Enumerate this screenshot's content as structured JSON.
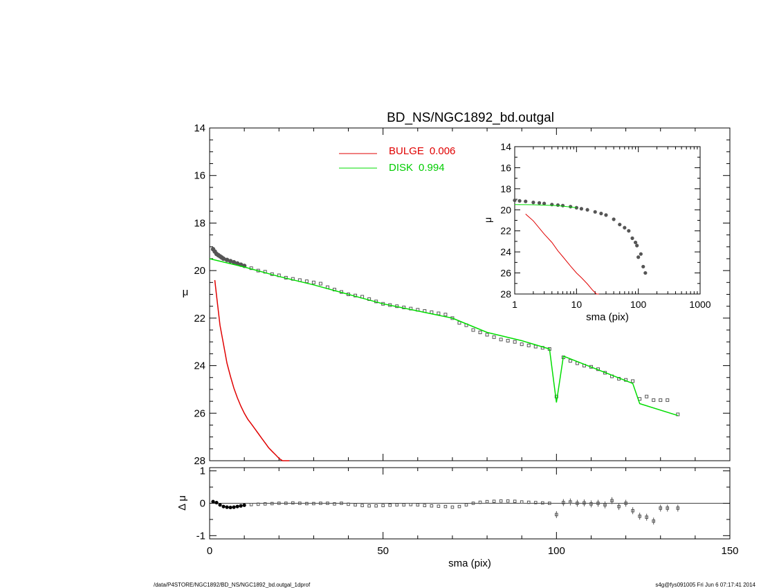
{
  "title": "BD_NS/NGC1892_bd.outgal",
  "footer_left": "/data/P4STORE/NGC1892/BD_NS/NGC1892_bd.outgal_1dprof",
  "footer_right": "s4g@fys091005  Fri Jun  6 07:17:41 2014",
  "colors": {
    "bulge": "#e00000",
    "disk": "#00dd00",
    "data": "#555555",
    "axis": "#000000"
  },
  "chart_data": [
    {
      "name": "main-profile",
      "type": "line",
      "xlabel": "",
      "ylabel": "μ",
      "xlim": [
        0,
        150
      ],
      "ylim": [
        28,
        14
      ],
      "y_ticks": [
        14,
        16,
        18,
        20,
        22,
        24,
        26,
        28
      ],
      "legend": [
        {
          "label": "BULGE",
          "value": "0.006"
        },
        {
          "label": "DISK",
          "value": "0.994"
        }
      ],
      "legend_position": "top-center",
      "observed": {
        "x": [
          1,
          1.5,
          2,
          2.5,
          3,
          3.5,
          4,
          5,
          6,
          7,
          8,
          9,
          10,
          12,
          14,
          16,
          18,
          20,
          22,
          24,
          26,
          28,
          30,
          32,
          34,
          36,
          38,
          40,
          42,
          44,
          46,
          48,
          50,
          52,
          54,
          56,
          58,
          60,
          62,
          64,
          66,
          68,
          70,
          72,
          74,
          76,
          78,
          80,
          82,
          84,
          86,
          88,
          90,
          92,
          94,
          96,
          98,
          100,
          102,
          104,
          106,
          108,
          110,
          112,
          114,
          116,
          118,
          120,
          122,
          124,
          126,
          128,
          130,
          132,
          135
        ],
        "y": [
          19.1,
          19.2,
          19.3,
          19.35,
          19.4,
          19.45,
          19.5,
          19.55,
          19.6,
          19.65,
          19.7,
          19.75,
          19.8,
          19.9,
          20.0,
          20.05,
          20.15,
          20.2,
          20.3,
          20.35,
          20.4,
          20.45,
          20.5,
          20.55,
          20.7,
          20.8,
          20.9,
          21.0,
          21.05,
          21.1,
          21.2,
          21.3,
          21.4,
          21.45,
          21.5,
          21.55,
          21.6,
          21.65,
          21.7,
          21.75,
          21.8,
          21.85,
          22.0,
          22.2,
          22.3,
          22.5,
          22.6,
          22.7,
          22.8,
          22.9,
          22.95,
          23.0,
          23.1,
          23.15,
          23.2,
          23.25,
          23.3,
          25.3,
          23.65,
          23.8,
          23.9,
          24.0,
          24.05,
          24.15,
          24.3,
          24.45,
          24.55,
          24.6,
          24.65,
          25.4,
          25.3,
          25.45,
          25.45,
          25.45,
          26.05
        ]
      },
      "series": [
        {
          "name": "BULGE",
          "x": [
            1.5,
            2,
            3,
            4,
            5,
            6,
            7,
            8,
            9,
            10,
            11,
            12,
            13,
            14,
            15,
            16,
            17,
            18,
            19,
            20,
            21,
            22,
            23
          ],
          "y": [
            20.4,
            21.05,
            22.3,
            23.1,
            23.9,
            24.45,
            24.95,
            25.35,
            25.7,
            26.0,
            26.25,
            26.45,
            26.65,
            26.85,
            27.05,
            27.25,
            27.45,
            27.6,
            27.75,
            27.9,
            28.0,
            28.05,
            28.1
          ]
        },
        {
          "name": "DISK",
          "x": [
            0,
            10,
            20,
            30,
            40,
            50,
            60,
            70,
            80,
            90,
            98,
            100,
            102,
            122,
            124,
            135
          ],
          "y": [
            19.5,
            19.85,
            20.25,
            20.6,
            21.0,
            21.4,
            21.7,
            22.0,
            22.6,
            22.95,
            23.3,
            25.55,
            23.6,
            24.75,
            25.6,
            26.1
          ]
        }
      ]
    },
    {
      "name": "inset-log-profile",
      "type": "line",
      "xlabel": "sma (pix)",
      "ylabel": "μ",
      "x_scale": "log",
      "xlim": [
        1,
        1000
      ],
      "ylim": [
        28,
        14
      ],
      "x_ticks": [
        "1",
        "10",
        "100",
        "1000"
      ],
      "y_ticks": [
        14,
        16,
        18,
        20,
        22,
        24,
        26,
        28
      ],
      "observed": {
        "x": [
          1,
          1.2,
          1.5,
          2,
          2.5,
          3,
          4,
          5,
          6,
          8,
          10,
          12,
          15,
          20,
          25,
          30,
          40,
          50,
          60,
          70,
          80,
          90,
          95,
          100,
          110,
          120,
          130
        ],
        "y": [
          19.1,
          19.15,
          19.2,
          19.3,
          19.35,
          19.4,
          19.5,
          19.55,
          19.6,
          19.7,
          19.8,
          19.9,
          20.0,
          20.2,
          20.35,
          20.5,
          20.9,
          21.4,
          21.7,
          22.0,
          22.7,
          23.1,
          23.4,
          24.5,
          24.2,
          25.4,
          26.0
        ]
      },
      "series": [
        {
          "name": "BULGE",
          "x": [
            1.5,
            2,
            3,
            4,
            5,
            6,
            8,
            10,
            12,
            15,
            18,
            21,
            23
          ],
          "y": [
            20.4,
            21.05,
            22.3,
            23.1,
            23.9,
            24.45,
            25.35,
            26.0,
            26.45,
            27.05,
            27.6,
            28.0,
            28.1
          ]
        },
        {
          "name": "DISK",
          "x": [
            1,
            2,
            5,
            10
          ],
          "y": [
            19.5,
            19.52,
            19.6,
            19.8
          ]
        }
      ]
    },
    {
      "name": "residual",
      "type": "scatter",
      "xlabel": "sma (pix)",
      "ylabel": "Δ μ",
      "xlim": [
        0,
        150
      ],
      "ylim": [
        -1.1,
        1.1
      ],
      "x_ticks": [
        0,
        50,
        100,
        150
      ],
      "y_ticks": [
        1,
        0,
        -1
      ],
      "x": [
        1,
        2,
        3,
        4,
        5,
        6,
        7,
        8,
        9,
        10,
        12,
        14,
        16,
        18,
        20,
        22,
        24,
        26,
        28,
        30,
        32,
        34,
        36,
        38,
        40,
        42,
        44,
        46,
        48,
        50,
        52,
        54,
        56,
        58,
        60,
        62,
        64,
        66,
        68,
        70,
        72,
        74,
        76,
        78,
        80,
        82,
        84,
        86,
        88,
        90,
        92,
        94,
        96,
        98,
        100,
        102,
        104,
        106,
        108,
        110,
        112,
        114,
        116,
        118,
        120,
        122,
        124,
        126,
        128,
        130,
        132,
        135
      ],
      "y": [
        0.05,
        0.02,
        -0.05,
        -0.1,
        -0.12,
        -0.13,
        -0.12,
        -0.1,
        -0.08,
        -0.06,
        -0.04,
        -0.03,
        -0.02,
        -0.01,
        0.0,
        0.0,
        0.01,
        0.0,
        -0.01,
        -0.01,
        0.0,
        0.0,
        -0.02,
        0.0,
        -0.03,
        -0.05,
        -0.07,
        -0.08,
        -0.08,
        -0.07,
        -0.06,
        -0.05,
        -0.05,
        -0.04,
        -0.05,
        -0.07,
        -0.08,
        -0.09,
        -0.1,
        -0.12,
        -0.1,
        -0.05,
        0.0,
        0.03,
        0.05,
        0.06,
        0.07,
        0.07,
        0.06,
        0.04,
        0.03,
        0.02,
        0.01,
        0.0,
        -0.35,
        0.02,
        0.04,
        0.0,
        0.01,
        -0.02,
        0.0,
        -0.05,
        0.08,
        -0.1,
        0.0,
        -0.23,
        -0.4,
        -0.43,
        -0.55,
        -0.15,
        -0.15,
        -0.15
      ]
    }
  ]
}
